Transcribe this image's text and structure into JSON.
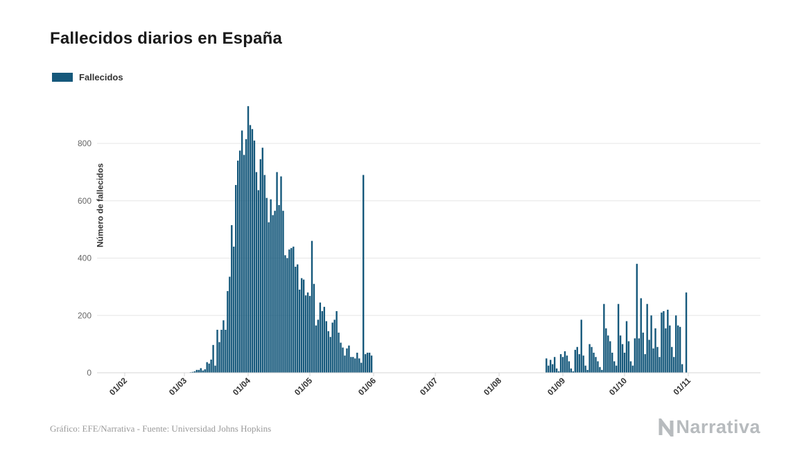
{
  "title": "Fallecidos diarios en España",
  "legend": {
    "label": "Fallecidos"
  },
  "credits": "Gráfico: EFE/Narrativa - Fuente: Universidad Johns Hopkins",
  "logo_text": "Narrativa",
  "chart_data": {
    "type": "bar",
    "title": "Fallecidos diarios en España",
    "series_name": "Fallecidos",
    "xlabel": "",
    "ylabel": "Número de fallecidos",
    "bar_color": "#15587B",
    "grid_color": "#e6e6e6",
    "axis_line_color": "#d4d4d4",
    "ylim": [
      0,
      950
    ],
    "y_ticks": [
      0,
      200,
      400,
      600,
      800
    ],
    "x_tick_labels": [
      "01/02",
      "01/03",
      "01/04",
      "01/05",
      "01/06",
      "01/07",
      "01/08",
      "01/09",
      "01/10",
      "01/11"
    ],
    "x_tick_day_index": [
      0,
      29,
      60,
      90,
      121,
      151,
      182,
      213,
      243,
      274
    ],
    "values_start_x_label": "01/02",
    "legend_position": "top-left",
    "grid": true,
    "values": [
      0,
      0,
      0,
      0,
      0,
      0,
      0,
      0,
      0,
      0,
      0,
      0,
      0,
      0,
      0,
      0,
      0,
      0,
      0,
      0,
      0,
      0,
      0,
      0,
      0,
      0,
      0,
      0,
      0,
      0,
      0,
      1,
      2,
      3,
      5,
      10,
      10,
      16,
      8,
      12,
      37,
      32,
      46,
      97,
      25,
      150,
      107,
      150,
      183,
      150,
      285,
      335,
      515,
      440,
      655,
      740,
      775,
      845,
      760,
      815,
      930,
      864,
      850,
      810,
      700,
      637,
      745,
      785,
      690,
      610,
      525,
      605,
      550,
      565,
      700,
      585,
      685,
      565,
      410,
      400,
      430,
      435,
      440,
      370,
      378,
      290,
      330,
      325,
      270,
      280,
      268,
      460,
      310,
      165,
      185,
      245,
      215,
      230,
      180,
      145,
      125,
      175,
      185,
      215,
      140,
      105,
      88,
      60,
      85,
      95,
      55,
      55,
      50,
      70,
      50,
      35,
      690,
      65,
      70,
      70,
      60,
      0,
      0,
      0,
      0,
      0,
      0,
      0,
      0,
      0,
      0,
      0,
      0,
      0,
      0,
      0,
      0,
      0,
      0,
      0,
      0,
      0,
      0,
      0,
      0,
      0,
      0,
      0,
      0,
      0,
      0,
      0,
      0,
      0,
      0,
      0,
      0,
      0,
      0,
      0,
      0,
      0,
      0,
      0,
      0,
      0,
      0,
      0,
      0,
      0,
      0,
      0,
      0,
      0,
      0,
      0,
      0,
      0,
      0,
      0,
      0,
      0,
      0,
      0,
      0,
      0,
      0,
      0,
      0,
      0,
      0,
      0,
      0,
      0,
      0,
      0,
      0,
      0,
      0,
      0,
      0,
      0,
      0,
      0,
      0,
      50,
      25,
      45,
      30,
      55,
      15,
      5,
      65,
      55,
      75,
      60,
      40,
      15,
      5,
      80,
      90,
      65,
      185,
      60,
      25,
      10,
      100,
      90,
      70,
      55,
      40,
      20,
      10,
      240,
      155,
      130,
      110,
      70,
      40,
      25,
      240,
      130,
      100,
      70,
      180,
      110,
      40,
      25,
      120,
      380,
      120,
      260,
      140,
      65,
      240,
      115,
      200,
      85,
      155,
      90,
      55,
      210,
      215,
      155,
      220,
      165,
      90,
      55,
      200,
      165,
      160,
      30,
      0,
      280,
      0
    ]
  }
}
